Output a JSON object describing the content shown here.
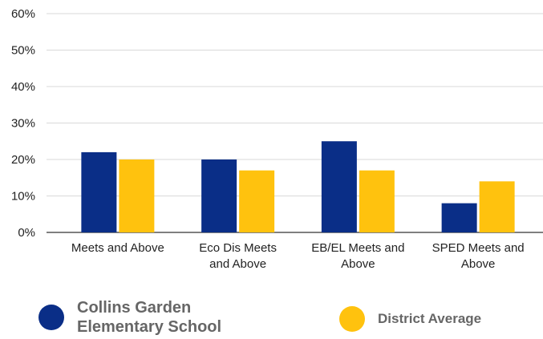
{
  "chart_data": {
    "type": "bar",
    "categories": [
      [
        "Meets and Above"
      ],
      [
        "Eco Dis Meets",
        "and Above"
      ],
      [
        "EB/EL Meets and",
        "Above"
      ],
      [
        "SPED Meets and",
        "Above"
      ]
    ],
    "series": [
      {
        "name": "Collins Garden Elementary School",
        "color": "#0a2e87",
        "values": [
          22,
          20,
          25,
          8
        ]
      },
      {
        "name": "District Average",
        "color": "#ffc20e",
        "values": [
          20,
          17,
          17,
          14
        ]
      }
    ],
    "ylim": [
      0,
      60
    ],
    "yticks": [
      0,
      10,
      20,
      30,
      40,
      50,
      60
    ],
    "ytick_labels": [
      "0%",
      "10%",
      "20%",
      "30%",
      "40%",
      "50%",
      "60%"
    ],
    "grid": true,
    "legend_position": "bottom"
  },
  "legend": {
    "school_line1": "Collins Garden",
    "school_line2": "Elementary School",
    "district": "District Average"
  }
}
